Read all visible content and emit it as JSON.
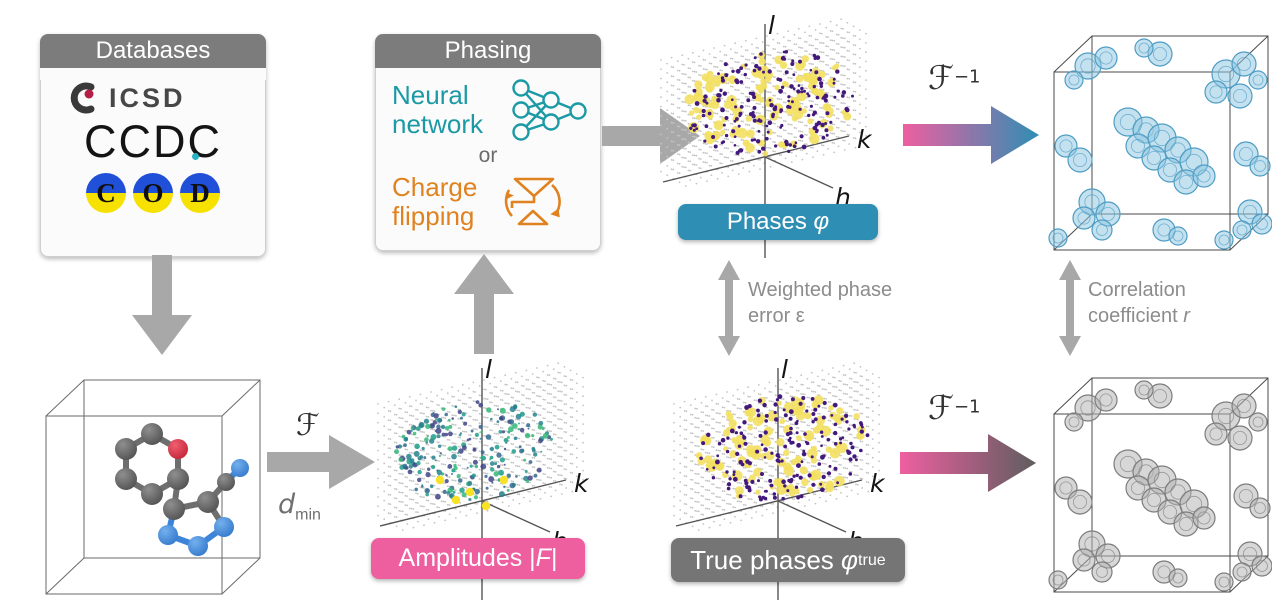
{
  "palette": {
    "header_gray": "#7c7c7c",
    "box_bg": "#fbfbfb",
    "arrow_gray": "#a8a8a8",
    "teal": "#2e8eb4",
    "pink": "#ee5fa0",
    "label_gray": "#757575",
    "annotation_gray": "#8c8c8c",
    "nn_teal": "#1b99a5",
    "cf_orange": "#e0821f",
    "density_blue_fill": "#8ec6e0",
    "density_blue_stroke": "#4e9dc4",
    "density_gray_fill": "#b3b3b3",
    "density_gray_stroke": "#7d7d7d",
    "phase_purple": "#44197c",
    "phase_yellow": "#f3e060",
    "amp_yellow": "#f7e225",
    "amp_colors": [
      "#414487",
      "#31688e",
      "#26828e",
      "#1f9e89",
      "#35b779"
    ],
    "grid_dot": "#c4c4c4",
    "arrow_dark_end": "#5e5e5e",
    "cod_blue": "#2050d8",
    "cod_yellow": "#f6e100",
    "icsd_dot_red": "#b41f45",
    "ccdc_dot_teal": "#29b0c3"
  },
  "databases": {
    "title": "Databases",
    "icsd": "ICSD",
    "ccdc": "CCDC",
    "cod_letters": [
      "C",
      "O",
      "D"
    ]
  },
  "phasing": {
    "title": "Phasing",
    "neural_network": "Neural network",
    "or": "or",
    "charge_flipping": "Charge flipping"
  },
  "pills": {
    "phases": {
      "text": "Phases ",
      "symbol": "φ"
    },
    "amplitudes": {
      "text": "Amplitudes ",
      "open": "|",
      "f": "F",
      "close": "|"
    },
    "true_phases": {
      "text": "True phases ",
      "symbol": "φ",
      "sub": "true"
    }
  },
  "annotations": {
    "weighted_line1": "Weighted phase",
    "weighted_line2": "error ε",
    "correlation_line1": "Correlation",
    "correlation_line2": "coefficient ",
    "correlation_symbol": "r"
  },
  "operators": {
    "fourier": "ℱ",
    "inverse_sup": "−1",
    "d": "d",
    "d_sub": "min"
  },
  "axes": {
    "h": "h",
    "k": "k",
    "l": "l"
  }
}
